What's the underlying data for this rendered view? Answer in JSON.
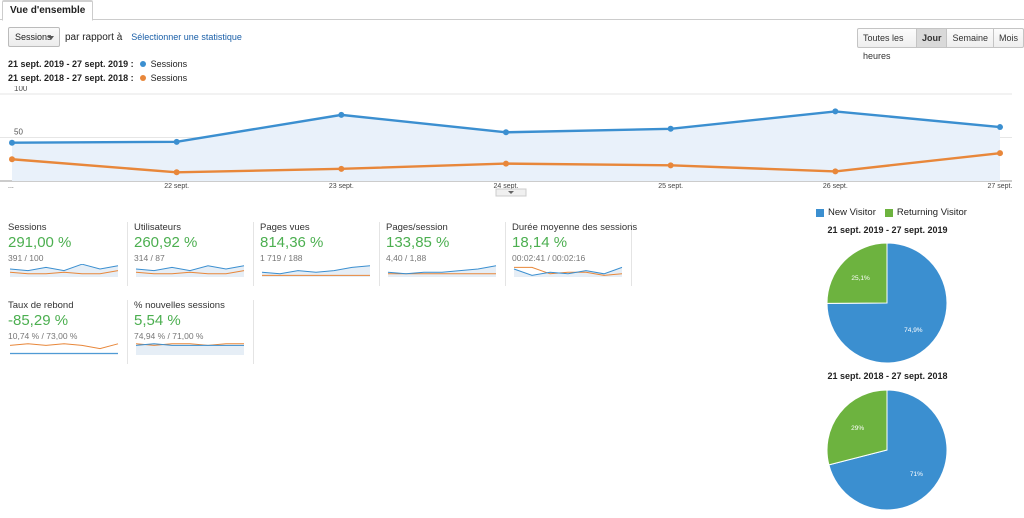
{
  "tab": {
    "label": "Vue d'ensemble"
  },
  "toolbar": {
    "metric": "Sessions",
    "compare_text": "par rapport à",
    "select_stat": "Sélectionner une statistique",
    "buttons": [
      "Toutes les heures",
      "Jour",
      "Semaine",
      "Mois"
    ],
    "active_button": "Jour"
  },
  "legend": [
    {
      "range": "21 sept. 2019 - 27 sept. 2019 :",
      "name": "Sessions",
      "color": "#3b8fd0"
    },
    {
      "range": "21 sept. 2018 - 27 sept. 2018 :",
      "name": "Sessions",
      "color": "#e8873a"
    }
  ],
  "chart_data": [
    {
      "type": "area",
      "x": [
        "21 sept.",
        "22 sept.",
        "23 sept.",
        "24 sept.",
        "25 sept.",
        "26 sept.",
        "27 sept."
      ],
      "x_tick_labels": [
        "...",
        "22 sept.",
        "23 sept.",
        "24 sept.",
        "25 sept.",
        "26 sept.",
        "27 sept."
      ],
      "y_ticks": [
        50,
        100
      ],
      "ylim": [
        0,
        100
      ],
      "grid": true,
      "series": [
        {
          "name": "Sessions",
          "period": "21 sept. 2019 - 27 sept. 2019",
          "color": "#3b8fd0",
          "values": [
            44,
            45,
            76,
            56,
            60,
            80,
            62
          ]
        },
        {
          "name": "Sessions",
          "period": "21 sept. 2018 - 27 sept. 2018",
          "color": "#e8873a",
          "values": [
            25,
            10,
            14,
            20,
            18,
            11,
            32
          ]
        }
      ]
    },
    {
      "type": "pie",
      "title": "21 sept. 2019 - 27 sept. 2019",
      "categories": [
        "New Visitor",
        "Returning Visitor"
      ],
      "values": [
        74.9,
        25.1
      ],
      "labels": [
        "74,9%",
        "25,1%"
      ],
      "colors": [
        "#3b8fd0",
        "#6db33f"
      ]
    },
    {
      "type": "pie",
      "title": "21 sept. 2018 - 27 sept. 2018",
      "categories": [
        "New Visitor",
        "Returning Visitor"
      ],
      "values": [
        71,
        29
      ],
      "labels": [
        "71%",
        "29%"
      ],
      "colors": [
        "#3b8fd0",
        "#6db33f"
      ]
    }
  ],
  "pie_legend": [
    {
      "label": "New Visitor",
      "color": "#3b8fd0"
    },
    {
      "label": "Returning Visitor",
      "color": "#6db33f"
    }
  ],
  "tiles": [
    {
      "label": "Sessions",
      "value": "291,00 %",
      "sub": "391 / 100",
      "cur": [
        5,
        4,
        6,
        4,
        8,
        5,
        7
      ],
      "prev": [
        3,
        2,
        2,
        3,
        2,
        2,
        4
      ]
    },
    {
      "label": "Utilisateurs",
      "value": "260,92 %",
      "sub": "314 / 87",
      "cur": [
        5,
        4,
        6,
        4,
        7,
        5,
        7
      ],
      "prev": [
        3,
        2,
        2,
        3,
        2,
        2,
        4
      ]
    },
    {
      "label": "Pages vues",
      "value": "814,36 %",
      "sub": "1 719 / 188",
      "cur": [
        3,
        2,
        4,
        3,
        4,
        6,
        7
      ],
      "prev": [
        1,
        1,
        1,
        1,
        1,
        1,
        1
      ]
    },
    {
      "label": "Pages/session",
      "value": "133,85 %",
      "sub": "4,40 / 1,88",
      "cur": [
        3,
        2,
        3,
        3,
        4,
        5,
        7
      ],
      "prev": [
        2,
        2,
        2,
        2,
        2,
        2,
        2
      ]
    },
    {
      "label": "Durée moyenne des sessions",
      "value": "18,14 %",
      "sub": "00:02:41 / 00:02:16",
      "cur": [
        5,
        1,
        3,
        2,
        4,
        2,
        6
      ],
      "prev": [
        6,
        6,
        2,
        3,
        3,
        1,
        2
      ]
    },
    {
      "label": "Taux de rebond",
      "value": "-85,29 %",
      "sub": "10,74 % / 73,00 %",
      "cur": [
        1,
        1,
        1,
        1,
        1,
        1,
        1
      ],
      "prev": [
        6,
        7,
        6,
        7,
        6,
        4,
        7
      ]
    },
    {
      "label": "% nouvelles sessions",
      "value": "5,54 %",
      "sub": "74,94 % / 71,00 %",
      "cur": [
        6,
        7,
        6,
        6,
        6,
        6,
        6
      ],
      "prev": [
        7,
        6,
        7,
        7,
        6,
        7,
        7
      ]
    }
  ]
}
